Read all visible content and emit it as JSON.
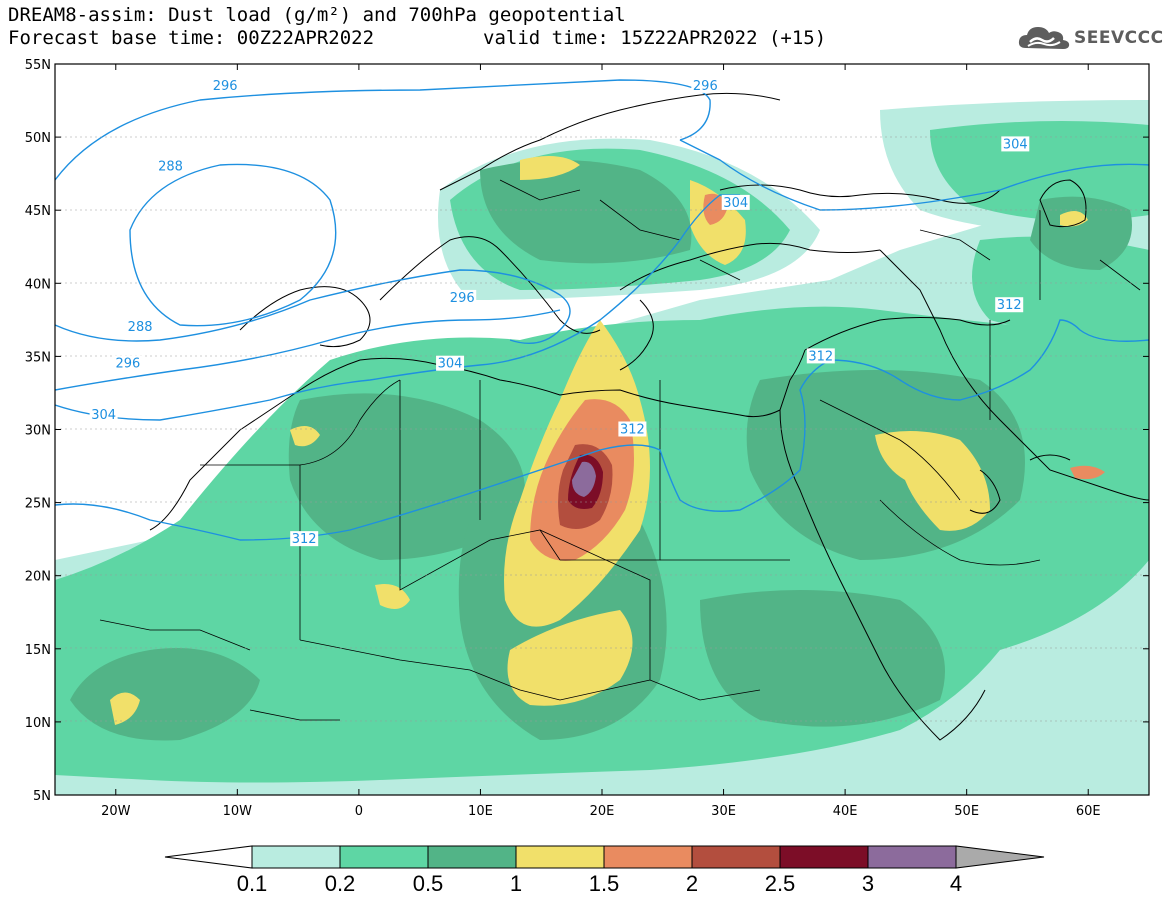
{
  "title": {
    "line1": "DREAM8-assim: Dust load (g/m²) and 700hPa geopotential",
    "line2_left": "Forecast base time: 00Z22APR2022",
    "line2_right": "valid time: 15Z22APR2022 (+15)"
  },
  "logo": {
    "text": "SEEVCCC",
    "icon": "cloud-icon"
  },
  "axes": {
    "lat_labels": [
      "55N",
      "50N",
      "45N",
      "40N",
      "35N",
      "30N",
      "25N",
      "20N",
      "15N",
      "10N",
      "5N"
    ],
    "lon_labels": [
      "20W",
      "10W",
      "0",
      "10E",
      "20E",
      "30E",
      "40E",
      "50E",
      "60E"
    ],
    "lat_range": [
      5,
      55
    ],
    "lon_range": [
      -25,
      65
    ]
  },
  "contours": {
    "color": "#1e90e0",
    "labels": [
      {
        "text": "296",
        "lon": -11,
        "lat": 53.5
      },
      {
        "text": "296",
        "lon": 28.5,
        "lat": 53.5
      },
      {
        "text": "288",
        "lon": -15.5,
        "lat": 48
      },
      {
        "text": "304",
        "lon": 54,
        "lat": 49.5
      },
      {
        "text": "304",
        "lon": 31,
        "lat": 45.5
      },
      {
        "text": "296",
        "lon": 8.5,
        "lat": 39
      },
      {
        "text": "288",
        "lon": -18,
        "lat": 37
      },
      {
        "text": "312",
        "lon": 53.5,
        "lat": 38.5
      },
      {
        "text": "296",
        "lon": -19,
        "lat": 34.5
      },
      {
        "text": "304",
        "lon": 7.5,
        "lat": 34.5
      },
      {
        "text": "312",
        "lon": 38,
        "lat": 35
      },
      {
        "text": "304",
        "lon": -21,
        "lat": 31
      },
      {
        "text": "312",
        "lon": 22.5,
        "lat": 30
      },
      {
        "text": "312",
        "lon": -4.5,
        "lat": 22.5
      }
    ]
  },
  "colorbar": {
    "unit": "g/m²",
    "labels": [
      "0.1",
      "0.2",
      "0.5",
      "1",
      "1.5",
      "2",
      "2.5",
      "3",
      "4"
    ],
    "colors": [
      "#ffffff",
      "#b9ece0",
      "#5ed6a4",
      "#52b487",
      "#f1e06a",
      "#e98b60",
      "#b34e3e",
      "#7c0d27",
      "#8c6b9c",
      "#aaaaaa"
    ]
  }
}
